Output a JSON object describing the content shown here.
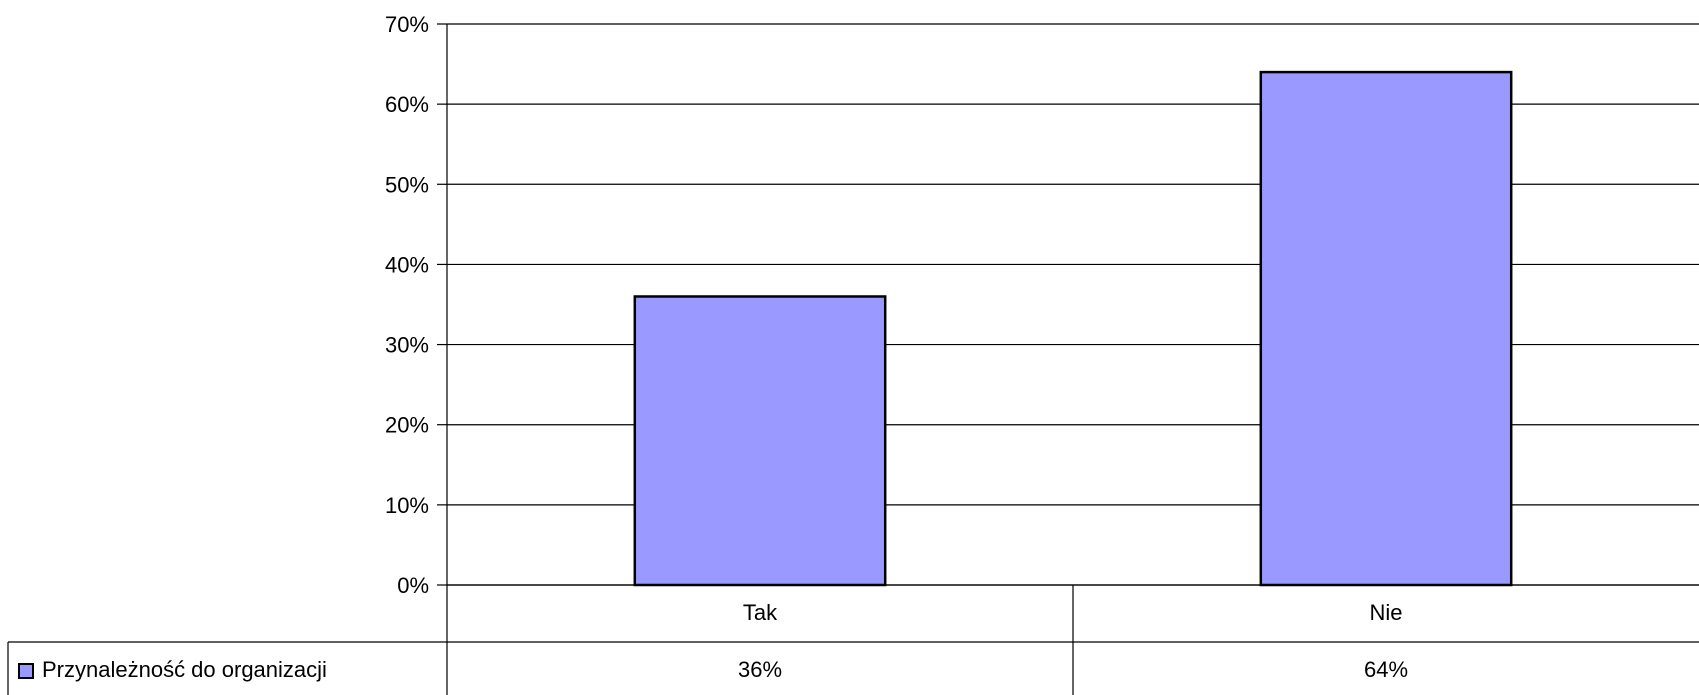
{
  "chart_data": {
    "type": "bar",
    "categories": [
      "Tak",
      "Nie"
    ],
    "series": [
      {
        "name": "Przynależność do organizacji",
        "values": [
          36,
          64
        ],
        "data_labels": [
          "36%",
          "64%"
        ],
        "color": "#9999ff"
      }
    ],
    "ylim": [
      0,
      70
    ],
    "yticks": [
      0,
      10,
      20,
      30,
      40,
      50,
      60,
      70
    ],
    "ytick_labels": [
      "0%",
      "10%",
      "20%",
      "30%",
      "40%",
      "50%",
      "60%",
      "70%"
    ],
    "grid": true,
    "legend_placement": "data-table-left",
    "title": "",
    "xlabel": "",
    "ylabel": ""
  }
}
